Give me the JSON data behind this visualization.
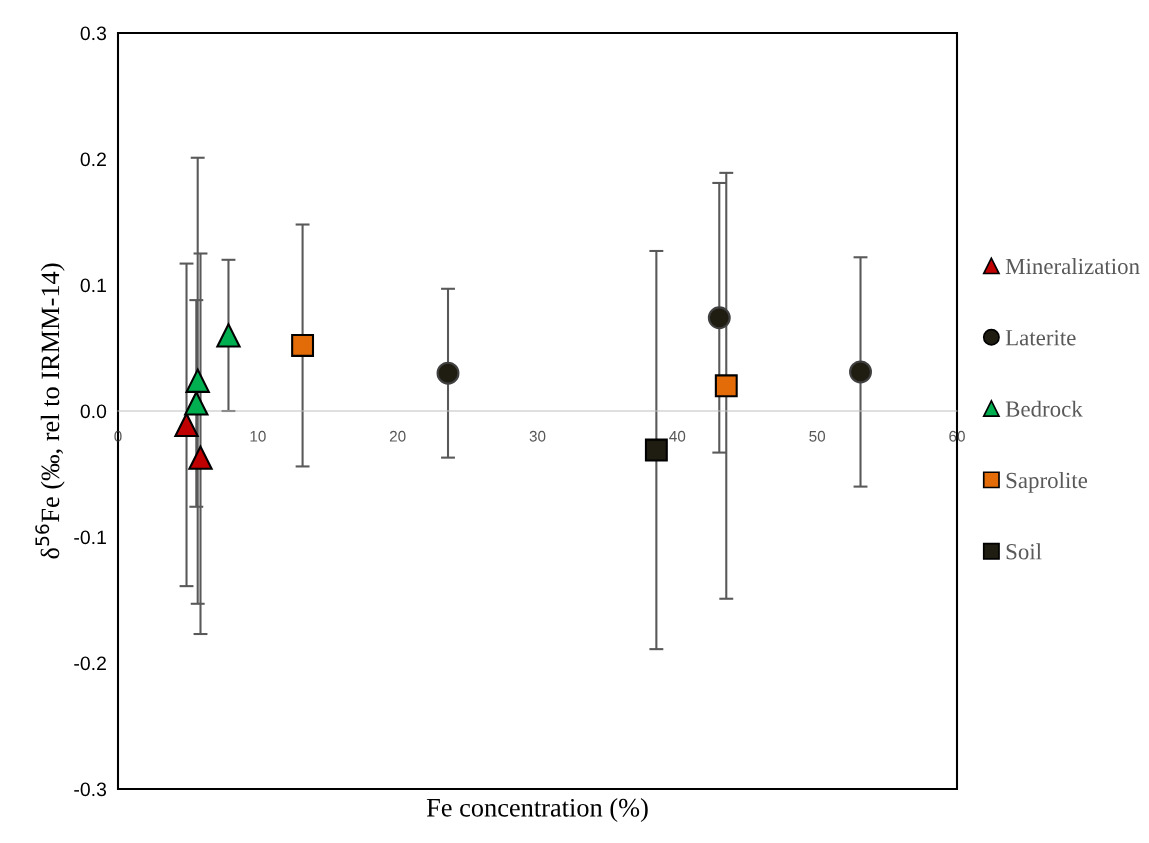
{
  "chart_data": {
    "type": "scatter",
    "xlabel": "Fe concentration (%)",
    "ylabel": "δ$^{56}$Fe (‰, rel to IRMM-14)",
    "xlim": [
      0,
      60
    ],
    "xticks": [
      0,
      10,
      20,
      30,
      40,
      50,
      60
    ],
    "ylim": [
      -0.3,
      0.3
    ],
    "yticks": [
      {
        "value": -0.3,
        "label": "-0.3"
      },
      {
        "value": -0.2,
        "label": "-0.2"
      },
      {
        "value": -0.1,
        "label": "-0.1"
      },
      {
        "value": 0,
        "label": "0.0"
      },
      {
        "value": 0.1,
        "label": "0.1"
      },
      {
        "value": 0.2,
        "label": "0.2"
      },
      {
        "value": 0.3,
        "label": "0.3"
      }
    ],
    "grid": false,
    "legend": "right",
    "series": [
      {
        "name": "Mineralization",
        "color": "#c00000",
        "marker": "triangle",
        "x": [
          4.9,
          5.9
        ],
        "values": [
          -0.011,
          -0.037
        ],
        "errors": [
          0.128,
          [
            -0.177,
            0.125
          ]
        ]
      },
      {
        "name": "Laterite",
        "color": "#1f1c12",
        "marker": "circle",
        "x": [
          23.6,
          43.0,
          53.1
        ],
        "values": [
          0.03,
          0.074,
          0.031
        ],
        "errors": [
          0.067,
          0.107,
          0.091
        ]
      },
      {
        "name": "Bedrock",
        "color": "#00b050",
        "marker": "triangle",
        "x": [
          5.6,
          5.7,
          7.9
        ],
        "values": [
          0.006,
          0.024,
          0.06
        ],
        "errors": [
          0.082,
          0.177,
          0.06
        ]
      },
      {
        "name": "Saprolite",
        "color": "#e36c09",
        "marker": "square",
        "x": [
          13.2,
          43.5
        ],
        "values": [
          0.052,
          0.02
        ],
        "errors": [
          0.096,
          0.169
        ]
      },
      {
        "name": "Soil",
        "color": "#1f1c12",
        "marker": "square",
        "x": [
          38.5
        ],
        "values": [
          -0.031
        ],
        "errors": [
          0.158
        ]
      }
    ]
  }
}
